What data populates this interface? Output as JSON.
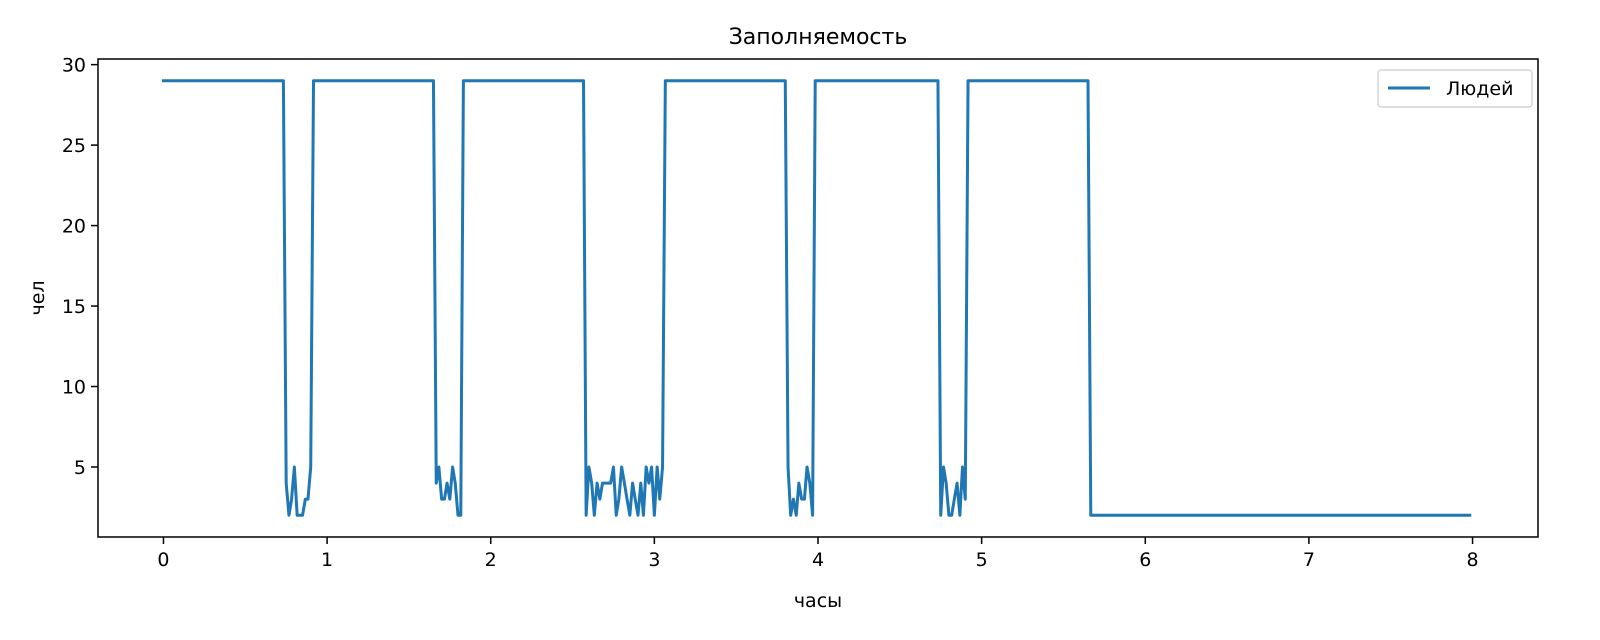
{
  "chart_data": {
    "type": "line",
    "title": "Заполняемость",
    "xlabel": "часы",
    "ylabel": "чел",
    "xlim": [
      -0.4,
      8.4
    ],
    "ylim": [
      0.65,
      30.35
    ],
    "xticks": [
      0,
      1,
      2,
      3,
      4,
      5,
      6,
      7,
      8
    ],
    "yticks": [
      5,
      10,
      15,
      20,
      25,
      30
    ],
    "grid": false,
    "legend_position": "top-right",
    "series": [
      {
        "name": "Людей",
        "color": "#1f77b4",
        "x": [
          0,
          0.733,
          0.75,
          0.767,
          0.783,
          0.8,
          0.817,
          0.833,
          0.85,
          0.867,
          0.883,
          0.9,
          0.917,
          1.65,
          1.667,
          1.683,
          1.7,
          1.717,
          1.733,
          1.75,
          1.767,
          1.783,
          1.8,
          1.817,
          1.833,
          2.567,
          2.583,
          2.6,
          2.617,
          2.633,
          2.65,
          2.667,
          2.683,
          2.7,
          2.717,
          2.733,
          2.75,
          2.767,
          2.783,
          2.8,
          2.817,
          2.833,
          2.85,
          2.867,
          2.883,
          2.9,
          2.917,
          2.933,
          2.95,
          2.967,
          2.983,
          3.0,
          3.017,
          3.033,
          3.05,
          3.067,
          3.083,
          3.8,
          3.817,
          3.833,
          3.85,
          3.867,
          3.883,
          3.9,
          3.917,
          3.933,
          3.95,
          3.967,
          3.983,
          4.0,
          4.733,
          4.75,
          4.767,
          4.783,
          4.8,
          4.817,
          4.833,
          4.85,
          4.867,
          4.883,
          4.9,
          4.917,
          5.65,
          5.667,
          7.983
        ],
        "y": [
          29,
          29,
          4,
          2,
          3,
          5,
          2,
          2,
          2,
          3,
          3,
          5,
          29,
          29,
          4,
          5,
          3,
          3,
          4,
          3,
          5,
          4,
          2,
          2,
          29,
          29,
          2,
          5,
          4,
          2,
          4,
          3,
          4,
          4,
          4,
          4,
          5,
          2,
          3,
          5,
          4,
          3,
          2,
          4,
          3,
          2,
          4,
          2,
          5,
          4,
          5,
          2,
          5,
          3,
          5,
          29,
          29,
          29,
          5,
          2,
          3,
          2,
          4,
          3,
          3,
          5,
          4,
          2,
          29,
          29,
          29,
          2,
          5,
          4,
          2,
          2,
          3,
          4,
          2,
          5,
          3,
          29,
          29,
          2,
          2
        ]
      }
    ]
  }
}
